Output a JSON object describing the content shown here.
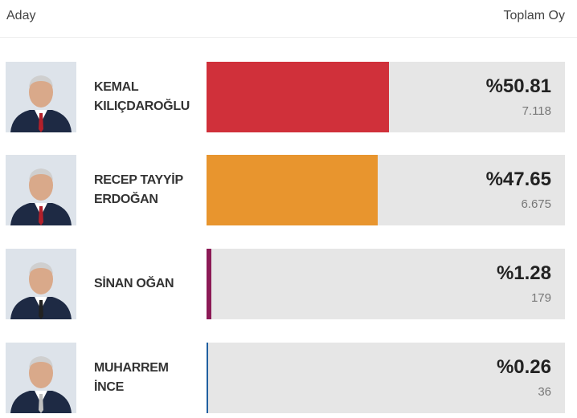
{
  "chart_data": {
    "type": "bar",
    "orientation": "horizontal",
    "header": {
      "candidate": "Aday",
      "total": "Toplam Oy"
    },
    "categories": [
      "KEMAL KILIÇDAROĞLU",
      "RECEP TAYYİP ERDOĞAN",
      "SİNAN OĞAN",
      "MUHARREM İNCE"
    ],
    "values": [
      50.81,
      47.65,
      1.28,
      0.26
    ],
    "value_labels": [
      "%50.81",
      "%47.65",
      "%1.28",
      "%0.26"
    ],
    "votes": [
      "7.118",
      "6.675",
      "179",
      "36"
    ],
    "colors": [
      "#d0303a",
      "#e8952e",
      "#8c1a56",
      "#1f5fa0"
    ],
    "xlim": [
      0,
      100
    ]
  }
}
